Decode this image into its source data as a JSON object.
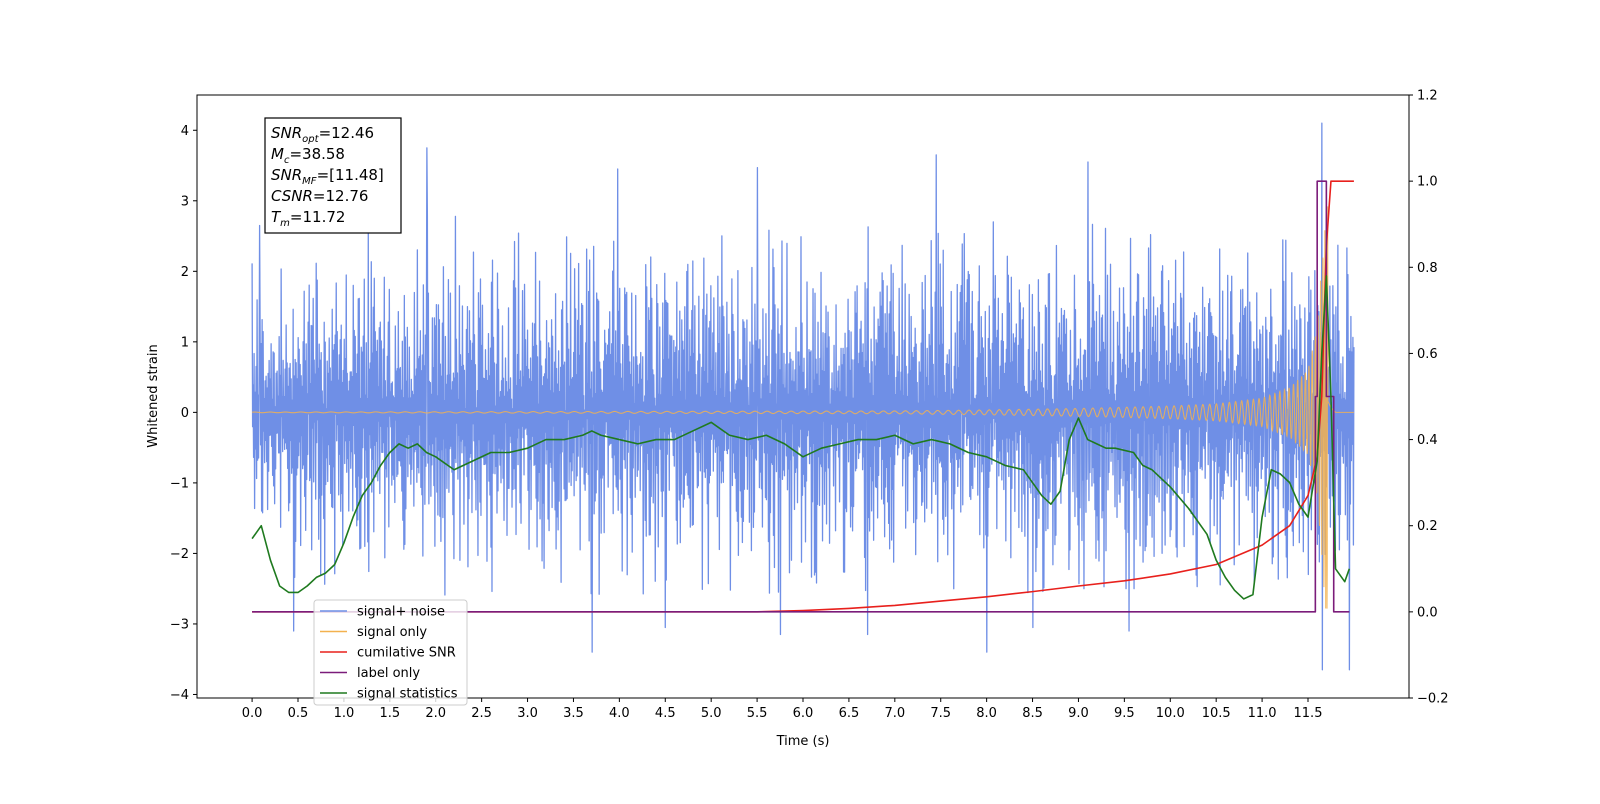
{
  "chart_data": {
    "type": "line",
    "xlabel": "Time (s)",
    "ylabel_left": "Whitened strain",
    "ylabel_right": "",
    "xlim": [
      -0.6,
      12.6
    ],
    "ylim_left": [
      -4.05,
      4.5
    ],
    "ylim_right": [
      -0.2,
      1.2
    ],
    "x_ticks": [
      0.0,
      0.5,
      1.0,
      1.5,
      2.0,
      2.5,
      3.0,
      3.5,
      4.0,
      4.5,
      5.0,
      5.5,
      6.0,
      6.5,
      7.0,
      7.5,
      8.0,
      8.5,
      9.0,
      9.5,
      10.0,
      10.5,
      11.0,
      11.5
    ],
    "x_tick_labels": [
      "0.0",
      "0.5",
      "1.0",
      "1.5",
      "2.0",
      "2.5",
      "3.0",
      "3.5",
      "4.0",
      "4.5",
      "5.0",
      "5.5",
      "6.0",
      "6.5",
      "7.0",
      "7.5",
      "8.0",
      "8.5",
      "9.0",
      "9.5",
      "10.0",
      "10.5",
      "11.0",
      "11.5"
    ],
    "y_left_ticks": [
      -4,
      -3,
      -2,
      -1,
      0,
      1,
      2,
      3,
      4
    ],
    "y_left_tick_labels": [
      "−4",
      "−3",
      "−2",
      "−1",
      "0",
      "1",
      "2",
      "3",
      "4"
    ],
    "y_right_ticks": [
      -0.2,
      0.0,
      0.2,
      0.4,
      0.6,
      0.8,
      1.0,
      1.2
    ],
    "y_right_tick_labels": [
      "−0.2",
      "0.0",
      "0.2",
      "0.4",
      "0.6",
      "0.8",
      "1.0",
      "1.2"
    ],
    "grid": false,
    "legend": {
      "location": "lower-left"
    },
    "info_box": [
      {
        "base": "SNR",
        "sub": "opt",
        "value": "=12.46"
      },
      {
        "base": "M",
        "sub": "c",
        "value": "=38.58"
      },
      {
        "base": "SNR",
        "sub": "MF",
        "value": "=[11.48]"
      },
      {
        "base": "CSNR",
        "sub": "",
        "value": "=12.76"
      },
      {
        "base": "T",
        "sub": "m",
        "value": "=11.72"
      }
    ],
    "series": [
      {
        "name": "signal+ noise",
        "axis": "left",
        "color": "#6f8fe6",
        "kind": "noise",
        "x_range": [
          0.0,
          12.0
        ],
        "typical_amplitude": 0.95,
        "upper_envelope": [
          [
            0.0,
            2.6
          ],
          [
            0.5,
            2.7
          ],
          [
            1.0,
            2.6
          ],
          [
            2.0,
            2.8
          ],
          [
            3.0,
            2.7
          ],
          [
            4.0,
            2.8
          ],
          [
            5.0,
            2.7
          ],
          [
            6.0,
            2.7
          ],
          [
            7.0,
            2.6
          ],
          [
            8.0,
            2.7
          ],
          [
            9.0,
            2.7
          ],
          [
            10.0,
            2.6
          ],
          [
            11.0,
            2.4
          ],
          [
            11.5,
            2.5
          ],
          [
            12.0,
            2.3
          ]
        ],
        "lower_envelope": [
          [
            0.0,
            -2.2
          ],
          [
            1.0,
            -2.5
          ],
          [
            2.0,
            -2.6
          ],
          [
            3.0,
            -2.5
          ],
          [
            4.0,
            -2.6
          ],
          [
            5.0,
            -2.5
          ],
          [
            6.0,
            -2.6
          ],
          [
            7.0,
            -2.5
          ],
          [
            8.0,
            -2.6
          ],
          [
            9.0,
            -2.5
          ],
          [
            10.0,
            -2.5
          ],
          [
            11.0,
            -2.4
          ],
          [
            12.0,
            -2.2
          ]
        ],
        "spikes": [
          [
            0.08,
            2.65
          ],
          [
            0.45,
            -3.1
          ],
          [
            1.9,
            3.75
          ],
          [
            3.7,
            -3.4
          ],
          [
            3.98,
            3.45
          ],
          [
            4.5,
            -3.05
          ],
          [
            5.5,
            3.47
          ],
          [
            5.75,
            -3.15
          ],
          [
            6.7,
            -3.15
          ],
          [
            7.45,
            3.65
          ],
          [
            8.0,
            -3.4
          ],
          [
            8.5,
            -3.05
          ],
          [
            9.1,
            3.55
          ],
          [
            9.55,
            -3.1
          ],
          [
            11.65,
            4.1
          ],
          [
            11.65,
            -3.65
          ],
          [
            11.95,
            -3.65
          ]
        ]
      },
      {
        "name": "signal only",
        "axis": "left",
        "color": "#f3b14f",
        "kind": "chirp",
        "x_range": [
          0.0,
          12.0
        ],
        "peak_time": 11.72,
        "envelope": [
          [
            0.0,
            0.004
          ],
          [
            7.0,
            0.02
          ],
          [
            8.0,
            0.035
          ],
          [
            9.0,
            0.055
          ],
          [
            10.0,
            0.09
          ],
          [
            10.5,
            0.12
          ],
          [
            11.0,
            0.2
          ],
          [
            11.3,
            0.35
          ],
          [
            11.5,
            0.6
          ],
          [
            11.6,
            1.2
          ],
          [
            11.65,
            2.1
          ],
          [
            11.7,
            2.9
          ],
          [
            11.72,
            3.3
          ],
          [
            11.75,
            1.5
          ],
          [
            11.8,
            0.0
          ],
          [
            12.0,
            0.0
          ]
        ]
      },
      {
        "name": "cumilative SNR",
        "axis": "right",
        "color": "#e8201c",
        "kind": "line",
        "x": [
          0.0,
          5.5,
          6.0,
          6.5,
          7.0,
          7.5,
          8.0,
          8.5,
          9.0,
          9.5,
          10.0,
          10.5,
          11.0,
          11.3,
          11.5,
          11.6,
          11.65,
          11.7,
          11.75,
          11.8,
          12.0
        ],
        "y": [
          0.0,
          0.0,
          0.003,
          0.008,
          0.015,
          0.025,
          0.035,
          0.047,
          0.06,
          0.072,
          0.088,
          0.11,
          0.155,
          0.2,
          0.27,
          0.36,
          0.5,
          0.85,
          1.0,
          1.0,
          1.0
        ]
      },
      {
        "name": "label only",
        "axis": "right",
        "color": "#7b1c7a",
        "kind": "line",
        "x": [
          0.0,
          11.58,
          11.58,
          11.6,
          11.6,
          11.7,
          11.7,
          11.78,
          11.78,
          11.95
        ],
        "y": [
          0.0,
          0.0,
          0.5,
          0.5,
          1.0,
          1.0,
          0.5,
          0.5,
          0.0,
          0.0
        ]
      },
      {
        "name": "signal statistics",
        "axis": "right",
        "color": "#1f7a1f",
        "kind": "line",
        "x": [
          0.0,
          0.1,
          0.2,
          0.3,
          0.4,
          0.5,
          0.6,
          0.7,
          0.8,
          0.9,
          1.0,
          1.1,
          1.2,
          1.3,
          1.4,
          1.5,
          1.6,
          1.7,
          1.8,
          1.9,
          2.0,
          2.2,
          2.4,
          2.6,
          2.8,
          3.0,
          3.2,
          3.4,
          3.6,
          3.7,
          3.8,
          4.0,
          4.2,
          4.4,
          4.6,
          4.8,
          5.0,
          5.2,
          5.4,
          5.6,
          5.8,
          6.0,
          6.2,
          6.4,
          6.6,
          6.8,
          7.0,
          7.2,
          7.4,
          7.6,
          7.8,
          8.0,
          8.2,
          8.4,
          8.6,
          8.7,
          8.8,
          8.9,
          9.0,
          9.1,
          9.2,
          9.3,
          9.4,
          9.6,
          9.7,
          9.8,
          10.0,
          10.2,
          10.4,
          10.5,
          10.6,
          10.7,
          10.8,
          10.9,
          11.0,
          11.1,
          11.2,
          11.3,
          11.4,
          11.5,
          11.6,
          11.65,
          11.7,
          11.75,
          11.8,
          11.9,
          11.95
        ],
        "y": [
          0.17,
          0.2,
          0.12,
          0.06,
          0.045,
          0.045,
          0.06,
          0.08,
          0.09,
          0.11,
          0.16,
          0.22,
          0.27,
          0.3,
          0.34,
          0.37,
          0.39,
          0.38,
          0.39,
          0.37,
          0.36,
          0.33,
          0.35,
          0.37,
          0.37,
          0.38,
          0.4,
          0.4,
          0.41,
          0.42,
          0.41,
          0.4,
          0.39,
          0.4,
          0.4,
          0.42,
          0.44,
          0.41,
          0.4,
          0.41,
          0.39,
          0.36,
          0.38,
          0.39,
          0.4,
          0.4,
          0.41,
          0.39,
          0.4,
          0.39,
          0.37,
          0.36,
          0.34,
          0.33,
          0.27,
          0.25,
          0.28,
          0.4,
          0.45,
          0.4,
          0.39,
          0.38,
          0.38,
          0.37,
          0.34,
          0.33,
          0.29,
          0.24,
          0.18,
          0.12,
          0.08,
          0.05,
          0.03,
          0.04,
          0.22,
          0.33,
          0.32,
          0.3,
          0.25,
          0.22,
          0.35,
          0.6,
          0.78,
          0.5,
          0.1,
          0.07,
          0.1
        ]
      }
    ]
  }
}
